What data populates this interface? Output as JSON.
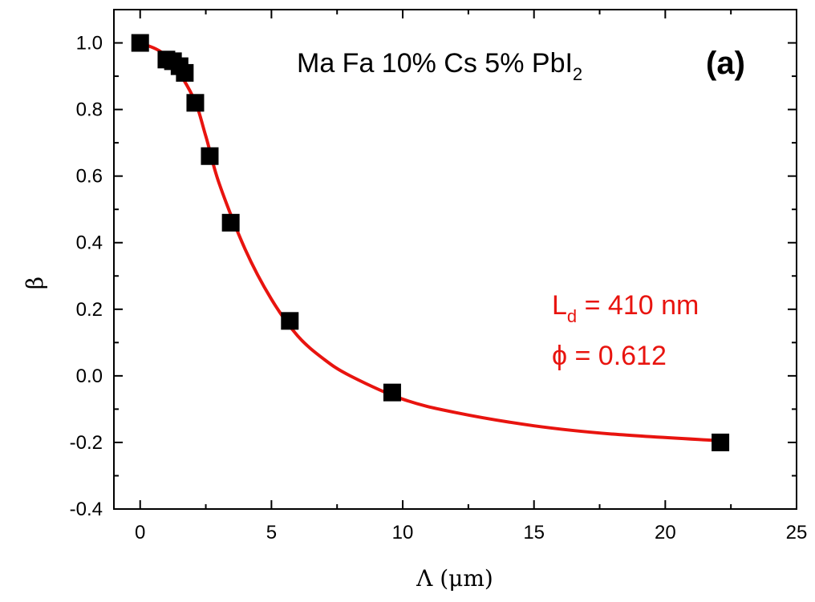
{
  "chart_data": {
    "type": "scatter",
    "title": "",
    "xlabel": "Λ (μm)",
    "ylabel": "β",
    "xlim": [
      -1,
      25
    ],
    "ylim": [
      -0.4,
      1.1
    ],
    "xticks": [
      0,
      5,
      10,
      15,
      20,
      25
    ],
    "xtick_labels": [
      "0",
      "5",
      "10",
      "15",
      "20",
      "25"
    ],
    "yticks": [
      -0.4,
      -0.2,
      0.0,
      0.2,
      0.4,
      0.6,
      0.8,
      1.0
    ],
    "ytick_labels": [
      "-0.4",
      "-0.2",
      "0.0",
      "0.2",
      "0.4",
      "0.6",
      "0.8",
      "1.0"
    ],
    "grid": false,
    "series": [
      {
        "kind": "markers",
        "marker": "square",
        "color": "#000000",
        "x": [
          0.0,
          1.0,
          1.25,
          1.5,
          1.7,
          2.1,
          2.65,
          3.45,
          5.7,
          9.6,
          22.1
        ],
        "y": [
          1.0,
          0.95,
          0.945,
          0.93,
          0.91,
          0.82,
          0.66,
          0.46,
          0.165,
          -0.05,
          -0.2
        ]
      },
      {
        "kind": "fit-line",
        "color": "#e8140f",
        "x": [
          0.0,
          1.0,
          2.0,
          2.5,
          3.0,
          4.0,
          5.0,
          6.0,
          7.0,
          8.0,
          10.0,
          12.0,
          15.0,
          18.0,
          22.1
        ],
        "y": [
          1.0,
          0.96,
          0.84,
          0.72,
          0.58,
          0.38,
          0.23,
          0.12,
          0.05,
          0.0,
          -0.07,
          -0.11,
          -0.15,
          -0.175,
          -0.195
        ]
      }
    ],
    "annotations": {
      "sample": "Ma Fa 10% Cs 5% PbI",
      "sample_subscript": "2",
      "panel": "(a)",
      "ld_main": "L",
      "ld_sub": "d",
      "ld_value": " = 410 nm",
      "phi": "ϕ = 0.612",
      "highlight_color": "#e8140f"
    }
  }
}
